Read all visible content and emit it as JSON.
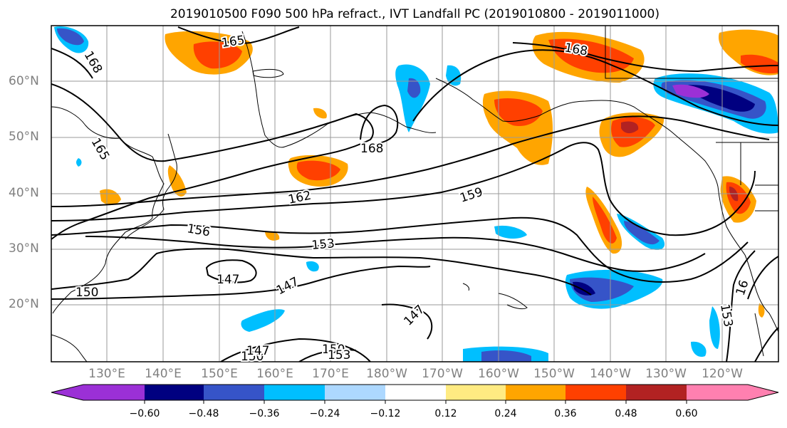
{
  "title": "2019010500 F090 500 hPa refract., IVT Landfall PC (2019010800 - 2019011000)",
  "map": {
    "lat_labels": [
      "60°N",
      "50°N",
      "40°N",
      "30°N",
      "20°N"
    ],
    "lon_labels": [
      "130°E",
      "140°E",
      "150°E",
      "160°E",
      "170°E",
      "180°W",
      "170°W",
      "160°W",
      "150°W",
      "140°W",
      "130°W",
      "120°W"
    ],
    "contour_labels": [
      "165",
      "168",
      "168",
      "165",
      "168",
      "162",
      "159",
      "156",
      "153",
      "150",
      "147",
      "147",
      "147",
      "150",
      "147",
      "150",
      "153",
      "153",
      "16"
    ],
    "shading_levels": [
      "−0.60",
      "−0.48",
      "−0.36",
      "−0.24",
      "−0.12",
      "0.12",
      "0.24",
      "0.36",
      "0.48",
      "0.60"
    ],
    "shading_colors": [
      "#9b30d6",
      "#000080",
      "#3654c8",
      "#00bfff",
      "#add8ff",
      "#ffffff",
      "#ffeb82",
      "#ffa500",
      "#ff4000",
      "#b22222",
      "#ff80b0"
    ],
    "projection": "cylindrical",
    "grid": true
  }
}
